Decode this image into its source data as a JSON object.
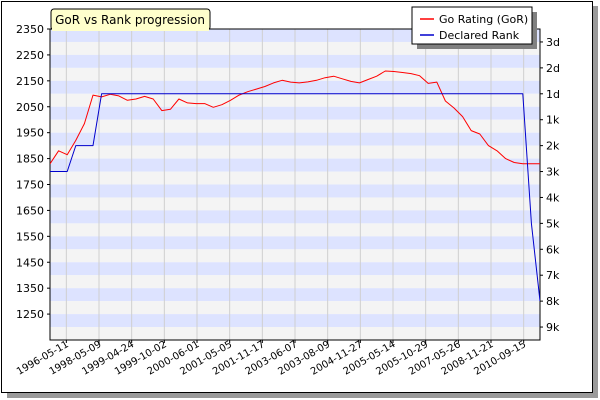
{
  "chart_data": {
    "type": "line",
    "title": "GoR vs Rank progression",
    "xlabel": "",
    "ylabel": "",
    "grid": true,
    "legend_position": "top-right",
    "x_tick_labels": [
      "1996-05-11",
      "1998-05-09",
      "1999-04-24",
      "1999-10-02",
      "2000-06-01",
      "2001-05-05",
      "2001-11-17",
      "2003-06-07",
      "2003-08-09",
      "2004-11-27",
      "2005-05-14",
      "2005-10-29",
      "2007-05-26",
      "2008-11-21",
      "2010-09-15"
    ],
    "y_left_ticks": [
      1250,
      1350,
      1450,
      1550,
      1650,
      1750,
      1850,
      1950,
      2050,
      2150,
      2250,
      2350
    ],
    "y_left_range": [
      1150,
      2350
    ],
    "y_right_ticks": [
      "3d",
      "2d",
      "1d",
      "1k",
      "2k",
      "3k",
      "4k",
      "5k",
      "6k",
      "7k",
      "8k",
      "9k"
    ],
    "y_right_values": [
      2300,
      2200,
      2100,
      2000,
      1900,
      1800,
      1700,
      1600,
      1500,
      1400,
      1300,
      1200
    ],
    "x_index_range": [
      0,
      57
    ],
    "series": [
      {
        "name": "Go Rating (GoR)",
        "color": "#ff0000",
        "x": [
          0,
          1,
          2,
          3,
          4,
          5,
          6,
          7,
          8,
          9,
          10,
          11,
          12,
          13,
          14,
          15,
          16,
          17,
          18,
          19,
          20,
          21,
          22,
          23,
          24,
          25,
          26,
          27,
          28,
          29,
          30,
          31,
          32,
          33,
          34,
          35,
          36,
          37,
          38,
          39,
          40,
          41,
          42,
          43,
          44,
          45,
          46,
          47,
          48,
          49,
          50,
          51,
          52,
          53,
          54,
          55,
          56,
          57
        ],
        "values": [
          1830,
          1880,
          1865,
          1920,
          1985,
          2095,
          2088,
          2098,
          2092,
          2075,
          2080,
          2090,
          2080,
          2035,
          2040,
          2080,
          2065,
          2062,
          2062,
          2048,
          2058,
          2075,
          2095,
          2108,
          2118,
          2128,
          2142,
          2152,
          2145,
          2142,
          2146,
          2152,
          2162,
          2168,
          2158,
          2148,
          2142,
          2155,
          2168,
          2188,
          2186,
          2182,
          2178,
          2170,
          2140,
          2145,
          2072,
          2045,
          2012,
          1958,
          1945,
          1900,
          1880,
          1850,
          1835,
          1830,
          1830,
          1830
        ]
      },
      {
        "name": "Declared Rank",
        "color": "#0000cc",
        "x": [
          0,
          2,
          3,
          5,
          6,
          55,
          56,
          57
        ],
        "values": [
          1800,
          1800,
          1900,
          1900,
          2100,
          2100,
          1600,
          1300
        ]
      }
    ]
  }
}
